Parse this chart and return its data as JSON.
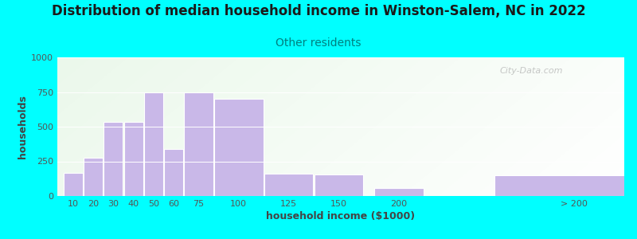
{
  "title": "Distribution of median household income in Winston-Salem, NC in 2022",
  "subtitle": "Other residents",
  "xlabel": "household income ($1000)",
  "ylabel": "households",
  "background_color": "#00FFFF",
  "bar_color": "#c9b8e8",
  "bar_edge_color": "#ffffff",
  "values": [
    165,
    275,
    535,
    535,
    750,
    340,
    750,
    700,
    160,
    155,
    55,
    150
  ],
  "bar_lefts": [
    5,
    15,
    25,
    35,
    45,
    55,
    65,
    80,
    105,
    130,
    160,
    220
  ],
  "bar_widths": [
    10,
    10,
    10,
    10,
    10,
    10,
    15,
    25,
    25,
    25,
    25,
    80
  ],
  "xlim": [
    2,
    285
  ],
  "ylim": [
    0,
    1000
  ],
  "yticks": [
    0,
    250,
    500,
    750,
    1000
  ],
  "xtick_labels": [
    "10",
    "20",
    "30",
    "40",
    "50",
    "60",
    "75",
    "100",
    "125",
    "150",
    "200",
    "> 200"
  ],
  "xtick_positions": [
    10,
    20,
    30,
    40,
    50,
    60,
    72.5,
    92.5,
    117.5,
    142.5,
    172.5,
    260
  ],
  "title_fontsize": 12,
  "subtitle_fontsize": 10,
  "subtitle_color": "#008080",
  "axis_label_fontsize": 9,
  "tick_fontsize": 8,
  "watermark": "City-Data.com"
}
